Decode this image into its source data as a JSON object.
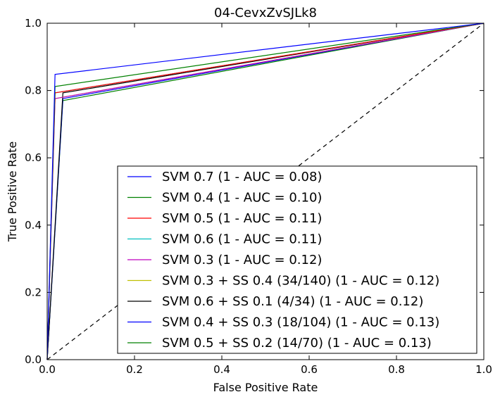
{
  "chart_data": {
    "type": "line",
    "title": "04-CevxZvSJLk8",
    "xlabel": "False Positive Rate",
    "ylabel": "True Positive Rate",
    "xlim": [
      0,
      1
    ],
    "ylim": [
      0,
      1
    ],
    "xticks": [
      "0.0",
      "0.2",
      "0.4",
      "0.6",
      "0.8",
      "1.0"
    ],
    "yticks": [
      "0.0",
      "0.2",
      "0.4",
      "0.6",
      "0.8",
      "1.0"
    ],
    "grid": false,
    "legend_position": "lower-right",
    "reference_line": {
      "x": [
        0,
        1
      ],
      "y": [
        0,
        1
      ],
      "style": "dashed",
      "color": "#000000"
    },
    "series": [
      {
        "name": "SVM 0.7 (1 - AUC = 0.08)",
        "color": "#0000ff",
        "x": [
          0,
          0.018,
          1
        ],
        "y": [
          0,
          0.848,
          1
        ]
      },
      {
        "name": "SVM 0.4 (1 - AUC = 0.10)",
        "color": "#008000",
        "x": [
          0,
          0.018,
          1
        ],
        "y": [
          0,
          0.812,
          1
        ]
      },
      {
        "name": "SVM 0.5 (1 - AUC = 0.11)",
        "color": "#ff0000",
        "x": [
          0,
          0.018,
          1
        ],
        "y": [
          0,
          0.793,
          1
        ]
      },
      {
        "name": "SVM 0.6 (1 - AUC = 0.11)",
        "color": "#00bfbf",
        "x": [
          0,
          0.018,
          1
        ],
        "y": [
          0,
          0.793,
          1
        ]
      },
      {
        "name": "SVM 0.3 (1 - AUC = 0.12)",
        "color": "#bf00bf",
        "x": [
          0,
          0.018,
          1
        ],
        "y": [
          0,
          0.776,
          1
        ]
      },
      {
        "name": "SVM 0.3 + SS 0.4 (34/140) (1 - AUC = 0.12)",
        "color": "#bfbf00",
        "x": [
          0,
          0.018,
          1
        ],
        "y": [
          0,
          0.776,
          1
        ]
      },
      {
        "name": "SVM 0.6 + SS 0.1 (4/34) (1 - AUC = 0.12)",
        "color": "#000000",
        "x": [
          0,
          0.036,
          1
        ],
        "y": [
          0,
          0.793,
          1
        ]
      },
      {
        "name": "SVM 0.4 + SS 0.3 (18/104) (1 - AUC = 0.13)",
        "color": "#0000ff",
        "x": [
          0,
          0.036,
          1
        ],
        "y": [
          0,
          0.776,
          1
        ]
      },
      {
        "name": "SVM 0.5 + SS 0.2 (14/70) (1 - AUC = 0.13)",
        "color": "#008000",
        "x": [
          0,
          0.036,
          1
        ],
        "y": [
          0,
          0.77,
          1
        ]
      }
    ]
  }
}
